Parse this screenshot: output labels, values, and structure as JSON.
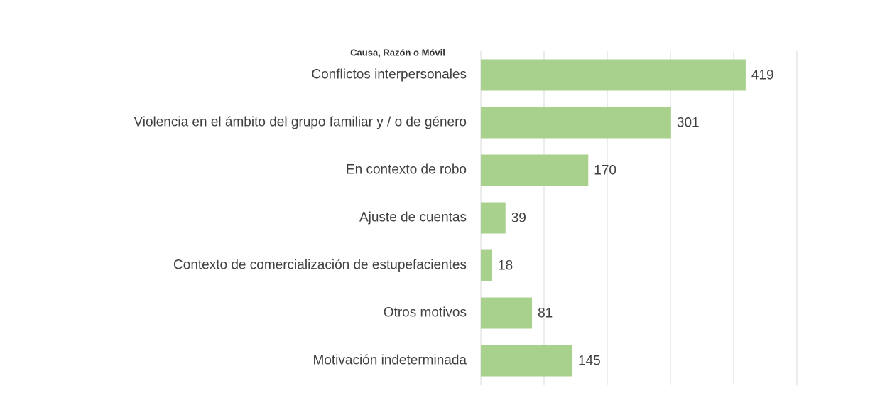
{
  "chart_data": {
    "type": "bar",
    "orientation": "horizontal",
    "title": "Causa, Razón o Móvil",
    "categories": [
      "Conflictos interpersonales",
      "Violencia en el ámbito del grupo familiar y / o de género",
      "En contexto de robo",
      "Ajuste de cuentas",
      "Contexto de comercialización de estupefacientes",
      "Otros motivos",
      "Motivación indeterminada"
    ],
    "values": [
      419,
      301,
      170,
      39,
      18,
      81,
      145
    ],
    "color": "#a9d18e",
    "xlim": [
      0,
      500
    ],
    "xticks": [
      0,
      100,
      200,
      300,
      400,
      500
    ],
    "grid": true
  }
}
